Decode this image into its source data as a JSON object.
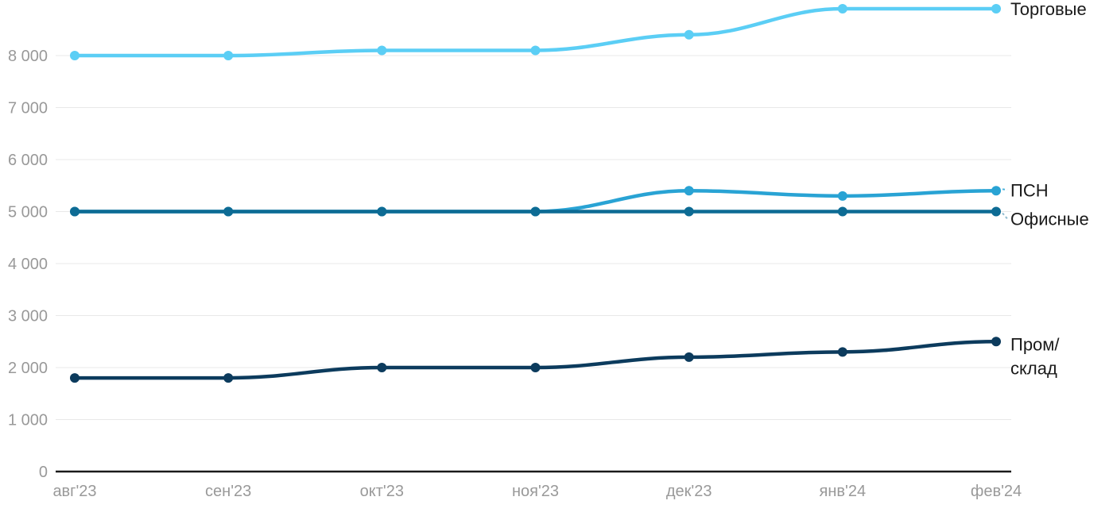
{
  "chart_data": {
    "type": "line",
    "x": [
      "авг'23",
      "сен'23",
      "окт'23",
      "ноя'23",
      "дек'23",
      "янв'24",
      "фев'24"
    ],
    "series": [
      {
        "name": "Торговые",
        "legend_label": "Торговые",
        "color": "#5BCEF5",
        "values": [
          8000,
          8000,
          8100,
          8100,
          8400,
          8900,
          8900
        ],
        "leader": false
      },
      {
        "name": "ПСН",
        "legend_label": "ПСН",
        "color": "#29A3D4",
        "values": [
          5000,
          5000,
          5000,
          5000,
          5400,
          5300,
          5400
        ],
        "leader": true
      },
      {
        "name": "Офисные",
        "legend_label": "Офисные",
        "color": "#0D6B94",
        "values": [
          5000,
          5000,
          5000,
          5000,
          5000,
          5000,
          5000
        ],
        "leader": true
      },
      {
        "name": "Пром/склад",
        "legend_label": "Пром/\nсклад",
        "color": "#0C3B5D",
        "values": [
          1800,
          1800,
          2000,
          2000,
          2200,
          2300,
          2500
        ],
        "leader": false
      }
    ],
    "ytick_values": [
      0,
      1000,
      2000,
      3000,
      4000,
      5000,
      6000,
      7000,
      8000
    ],
    "ytick_labels": [
      "0",
      "1 000",
      "2 000",
      "3 000",
      "4 000",
      "5 000",
      "6 000",
      "7 000",
      "8 000"
    ],
    "ylim": [
      0,
      9000
    ],
    "grid": true,
    "legend_position": "right",
    "title": "",
    "xlabel": "",
    "ylabel": ""
  },
  "colors": {
    "background": "#FFFFFF",
    "grid_line": "#E8E8E8",
    "axis_line": "#1A1A1A",
    "tick_label": "#999999",
    "legend_text": "#1A1A1A"
  }
}
